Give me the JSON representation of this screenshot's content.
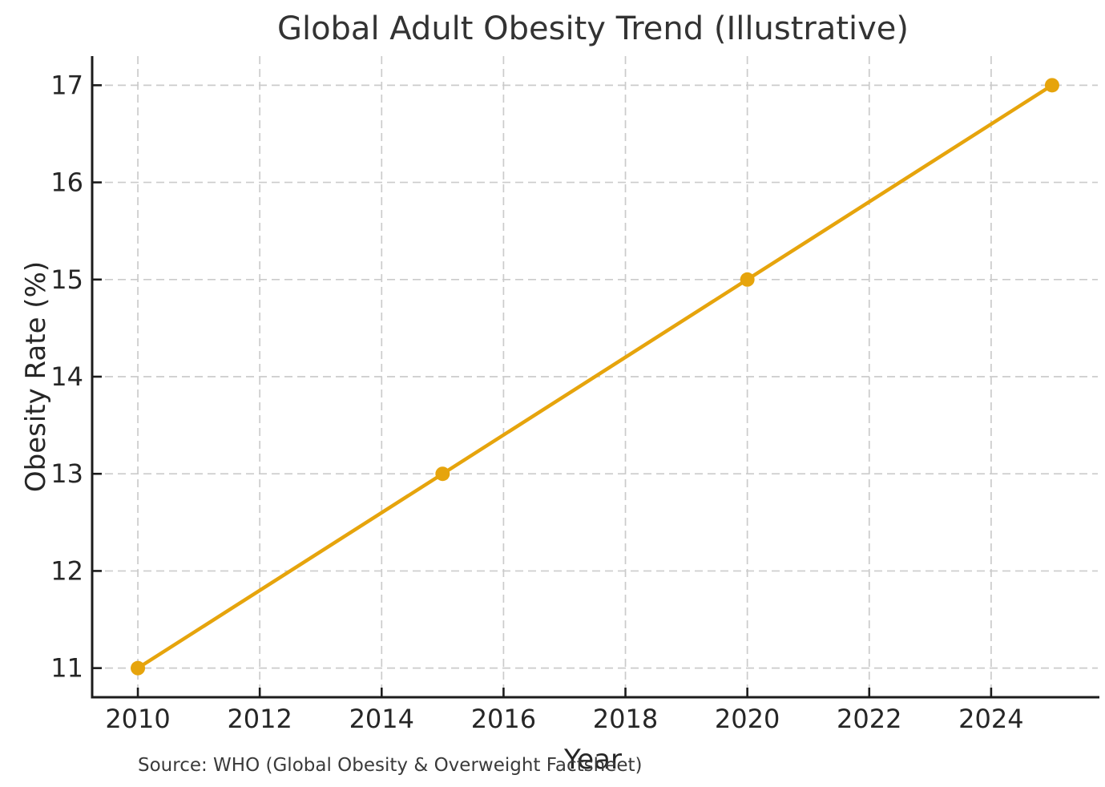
{
  "chart_data": {
    "type": "line",
    "title": "Global Adult Obesity Trend (Illustrative)",
    "xlabel": "Year",
    "ylabel": "Obesity Rate (%)",
    "annotation": "Source: WHO (Global Obesity & Overweight Factsheet)",
    "x": [
      2010,
      2015,
      2020,
      2025
    ],
    "y": [
      11,
      13,
      15,
      17
    ],
    "series": [
      {
        "name": "Obesity Rate",
        "x": [
          2010,
          2015,
          2020,
          2025
        ],
        "values": [
          11,
          13,
          15,
          17
        ]
      }
    ],
    "xticks": [
      2010,
      2012,
      2014,
      2016,
      2018,
      2020,
      2022,
      2024
    ],
    "yticks": [
      11,
      12,
      13,
      14,
      15,
      16,
      17
    ],
    "xlim": [
      2009.25,
      2025.75
    ],
    "ylim": [
      10.7,
      17.3
    ],
    "grid": true,
    "grid_style": "dashed",
    "tick_direction": "in",
    "legend": "none",
    "marker": "circle"
  },
  "colors": {
    "line": "#E6A40C",
    "grid": "#CBCBCB",
    "spine": "#1C1C1C",
    "title_text": "#333333",
    "tick_text": "#262626",
    "source_text": "#3A3A3A",
    "background": "#FFFFFF"
  }
}
